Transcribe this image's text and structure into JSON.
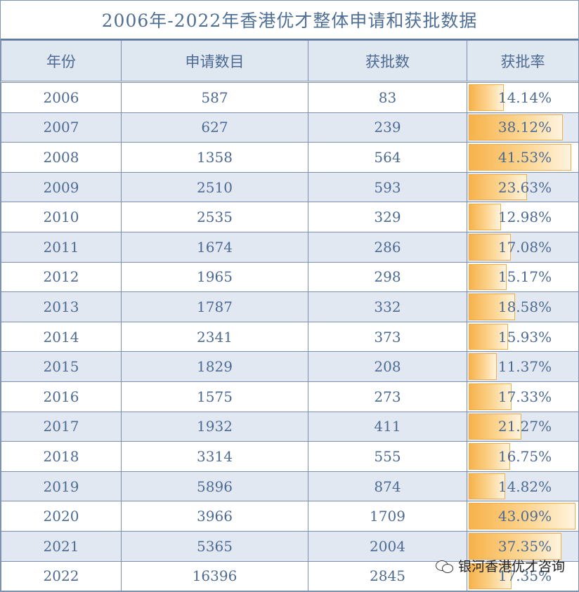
{
  "title": "2006年-2022年香港优才整体申请和获批数据",
  "headers": [
    "年份",
    "申请数目",
    "获批数",
    "获批率"
  ],
  "rows": [
    {
      "year": "2006",
      "applications": "587",
      "approved": "83",
      "rate": "14.14%",
      "rate_value": 14.14
    },
    {
      "year": "2007",
      "applications": "627",
      "approved": "239",
      "rate": "38.12%",
      "rate_value": 38.12
    },
    {
      "year": "2008",
      "applications": "1358",
      "approved": "564",
      "rate": "41.53%",
      "rate_value": 41.53
    },
    {
      "year": "2009",
      "applications": "2510",
      "approved": "593",
      "rate": "23.63%",
      "rate_value": 23.63
    },
    {
      "year": "2010",
      "applications": "2535",
      "approved": "329",
      "rate": "12.98%",
      "rate_value": 12.98
    },
    {
      "year": "2011",
      "applications": "1674",
      "approved": "286",
      "rate": "17.08%",
      "rate_value": 17.08
    },
    {
      "year": "2012",
      "applications": "1965",
      "approved": "298",
      "rate": "15.17%",
      "rate_value": 15.17
    },
    {
      "year": "2013",
      "applications": "1787",
      "approved": "332",
      "rate": "18.58%",
      "rate_value": 18.58
    },
    {
      "year": "2014",
      "applications": "2341",
      "approved": "373",
      "rate": "15.93%",
      "rate_value": 15.93
    },
    {
      "year": "2015",
      "applications": "1829",
      "approved": "208",
      "rate": "11.37%",
      "rate_value": 11.37
    },
    {
      "year": "2016",
      "applications": "1575",
      "approved": "273",
      "rate": "17.33%",
      "rate_value": 17.33
    },
    {
      "year": "2017",
      "applications": "1932",
      "approved": "411",
      "rate": "21.27%",
      "rate_value": 21.27
    },
    {
      "year": "2018",
      "applications": "3314",
      "approved": "555",
      "rate": "16.75%",
      "rate_value": 16.75
    },
    {
      "year": "2019",
      "applications": "5896",
      "approved": "874",
      "rate": "14.82%",
      "rate_value": 14.82
    },
    {
      "year": "2020",
      "applications": "3966",
      "approved": "1709",
      "rate": "43.09%",
      "rate_value": 43.09
    },
    {
      "year": "2021",
      "applications": "5365",
      "approved": "2004",
      "rate": "37.35%",
      "rate_value": 37.35
    },
    {
      "year": "2022",
      "applications": "16396",
      "approved": "2845",
      "rate": "17.35%",
      "rate_value": 17.35
    }
  ],
  "rate_bar_max": 43.09,
  "bar_color": "#f7b24a",
  "watermark": {
    "icon": "wechat-icon",
    "text": "银河香港优才咨询"
  }
}
